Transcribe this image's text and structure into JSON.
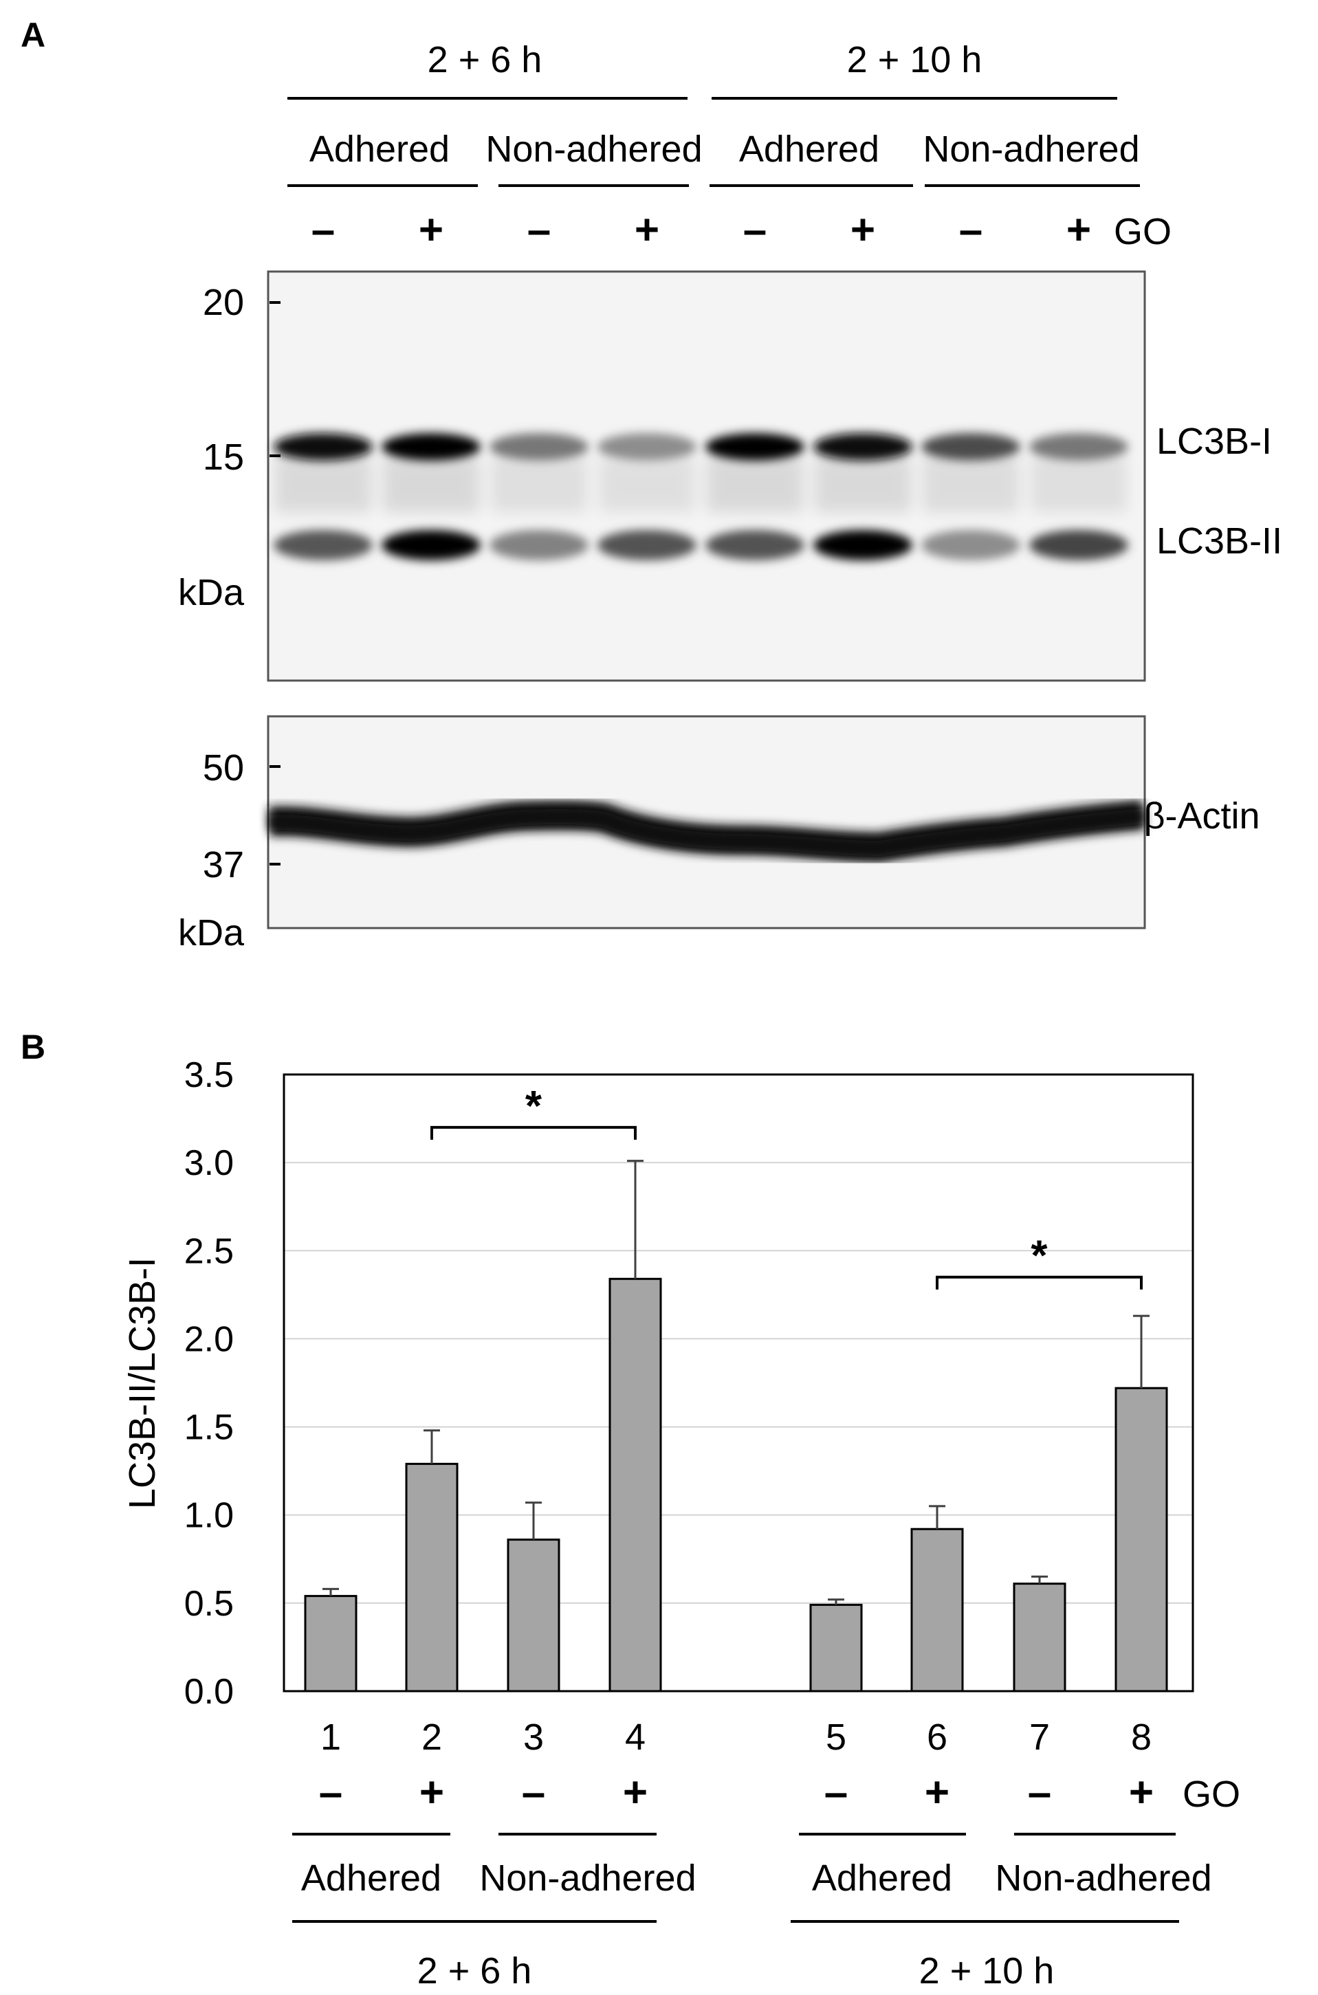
{
  "panel_a": {
    "letter": "A",
    "time_labels": [
      "2 + 6 h",
      "2 + 10 h"
    ],
    "condition_labels": [
      "Adhered",
      "Non-adhered",
      "Adhered",
      "Non-adhered"
    ],
    "lane_signs": [
      "–",
      "+",
      "–",
      "+",
      "–",
      "+",
      "–",
      "+"
    ],
    "treatment_label": "GO",
    "blot_lc3": {
      "markers": [
        "20",
        "15"
      ],
      "unit": "kDa",
      "bands": [
        "LC3B-I",
        "LC3B-II"
      ]
    },
    "blot_actin": {
      "markers": [
        "50",
        "37"
      ],
      "unit": "kDa",
      "band_label": "β-Actin"
    }
  },
  "panel_b": {
    "letter": "B",
    "significance": "*",
    "lane_signs": [
      "–",
      "+",
      "–",
      "+",
      "–",
      "+",
      "–",
      "+"
    ],
    "treatment_label": "GO",
    "condition_labels": [
      "Adhered",
      "Non-adhered",
      "Adhered",
      "Non-adhered"
    ],
    "time_labels": [
      "2 + 6 h",
      "2 + 10 h"
    ]
  },
  "chart_data": {
    "type": "bar",
    "categories": [
      "1",
      "2",
      "3",
      "4",
      "5",
      "6",
      "7",
      "8"
    ],
    "values": [
      0.54,
      1.29,
      0.86,
      2.34,
      0.49,
      0.92,
      0.61,
      1.72
    ],
    "error": [
      0.04,
      0.19,
      0.21,
      0.67,
      0.03,
      0.13,
      0.04,
      0.41
    ],
    "ylabel": "LC3B-II/LC3B-I",
    "ylim": [
      0,
      3.5
    ],
    "yticks": [
      "0.0",
      "0.5",
      "1.0",
      "1.5",
      "2.0",
      "2.5",
      "3.0",
      "3.5"
    ],
    "grid": true,
    "bar_color": "#a5a5a5",
    "significance_pairs": [
      [
        2,
        4
      ],
      [
        6,
        8
      ]
    ]
  }
}
